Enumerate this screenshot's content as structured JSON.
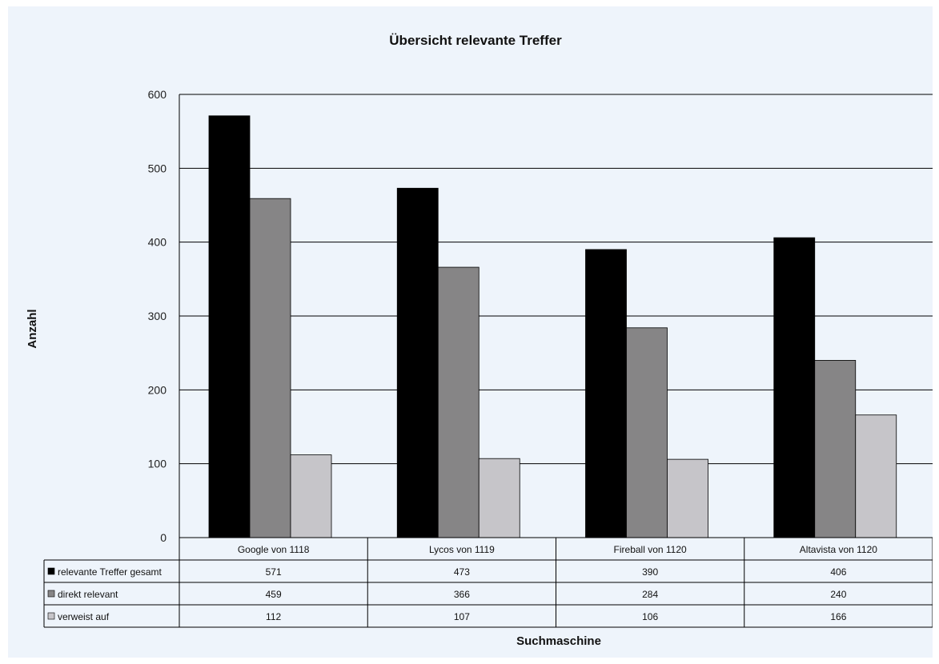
{
  "chart_data": {
    "type": "bar",
    "title": "Übersicht relevante Treffer",
    "xlabel": "Suchmaschine",
    "ylabel": "Anzahl",
    "categories": [
      "Google von 1118",
      "Lycos von 1119",
      "Fireball von 1120",
      "Altavista von 1120"
    ],
    "series": [
      {
        "name": "relevante Treffer gesamt",
        "values": [
          571,
          473,
          390,
          406
        ],
        "color": "#000000"
      },
      {
        "name": "direkt relevant",
        "values": [
          459,
          366,
          284,
          240
        ],
        "color": "#868586"
      },
      {
        "name": "verweist auf",
        "values": [
          112,
          107,
          106,
          166
        ],
        "color": "#c6c5c9"
      }
    ],
    "ylim": [
      0,
      600
    ],
    "yticks": [
      0,
      100,
      200,
      300,
      400,
      500,
      600
    ],
    "grid": true,
    "legend": "data-table-left"
  }
}
